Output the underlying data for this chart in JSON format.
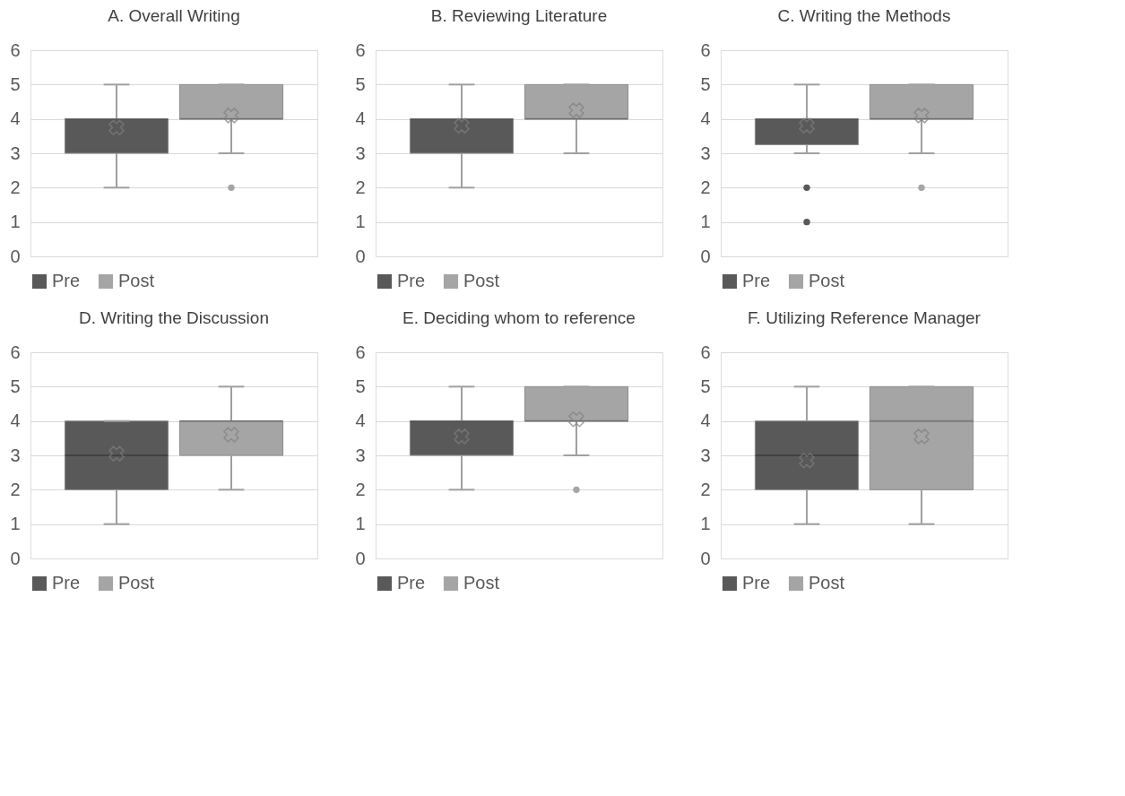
{
  "chart_data": [
    {
      "type": "box",
      "title": "A. Overall Writing",
      "categories": [
        null
      ],
      "ylim": [
        0,
        6
      ],
      "yticks": [
        0,
        1,
        2,
        3,
        4,
        5,
        6
      ],
      "grid": "y",
      "legend": "bottom",
      "marker": "cross",
      "tick_labels": "y",
      "series": [
        {
          "name": "Pre",
          "color": "#595959",
          "boxes": [
            {
              "low": 2,
              "q1": 3,
              "median": 4,
              "q3": 4,
              "high": 5,
              "mean": 3.75
            }
          ]
        },
        {
          "name": "Post",
          "color": "#a5a5a5",
          "boxes": [
            {
              "low": 3,
              "q1": 4,
              "median": 4,
              "q3": 5,
              "high": 5,
              "mean": 4.1,
              "outliers": [
                2
              ]
            }
          ]
        }
      ]
    },
    {
      "type": "box",
      "title": "B. Reviewing Literature",
      "categories": [
        null
      ],
      "ylim": [
        0,
        6
      ],
      "yticks": [
        0,
        1,
        2,
        3,
        4,
        5,
        6
      ],
      "grid": "y",
      "legend": "bottom",
      "marker": "cross",
      "tick_labels": "y",
      "series": [
        {
          "name": "Pre",
          "color": "#595959",
          "boxes": [
            {
              "low": 2,
              "q1": 3,
              "median": 4,
              "q3": 4,
              "high": 5,
              "mean": 3.8
            }
          ]
        },
        {
          "name": "Post",
          "color": "#a5a5a5",
          "boxes": [
            {
              "low": 3,
              "q1": 4,
              "median": 4,
              "q3": 5,
              "high": 5,
              "mean": 4.25
            }
          ]
        }
      ]
    },
    {
      "type": "box",
      "title": "C. Writing the Methods",
      "categories": [
        null
      ],
      "ylim": [
        0,
        6
      ],
      "yticks": [
        0,
        1,
        2,
        3,
        4,
        5,
        6
      ],
      "grid": "y",
      "legend": "bottom",
      "marker": "cross",
      "tick_labels": "y",
      "series": [
        {
          "name": "Pre",
          "color": "#595959",
          "boxes": [
            {
              "low": 3,
              "q1": 3.25,
              "median": 4,
              "q3": 4,
              "high": 5,
              "mean": 3.8,
              "outliers": [
                2,
                1
              ]
            }
          ]
        },
        {
          "name": "Post",
          "color": "#a5a5a5",
          "boxes": [
            {
              "low": 3,
              "q1": 4,
              "median": 4,
              "q3": 5,
              "high": 5,
              "mean": 4.1,
              "outliers": [
                2
              ]
            }
          ]
        }
      ]
    },
    {
      "type": "box",
      "title": "D. Writing the Discussion",
      "categories": [
        null
      ],
      "ylim": [
        0,
        6
      ],
      "yticks": [
        0,
        1,
        2,
        3,
        4,
        5,
        6
      ],
      "grid": "y",
      "legend": "bottom",
      "marker": "cross",
      "tick_labels": "y",
      "series": [
        {
          "name": "Pre",
          "color": "#595959",
          "boxes": [
            {
              "low": 1,
              "q1": 2,
              "median": 3,
              "q3": 4,
              "high": 4,
              "mean": 3.05
            }
          ]
        },
        {
          "name": "Post",
          "color": "#a5a5a5",
          "boxes": [
            {
              "low": 2,
              "q1": 3,
              "median": 4,
              "q3": 4,
              "high": 5,
              "mean": 3.6
            }
          ]
        }
      ]
    },
    {
      "type": "box",
      "title": "E. Deciding whom to reference",
      "categories": [
        null
      ],
      "ylim": [
        0,
        6
      ],
      "yticks": [
        0,
        1,
        2,
        3,
        4,
        5,
        6
      ],
      "grid": "y",
      "legend": "bottom",
      "marker": "cross",
      "tick_labels": "y",
      "series": [
        {
          "name": "Pre",
          "color": "#595959",
          "boxes": [
            {
              "low": 2,
              "q1": 3,
              "median": 4,
              "q3": 4,
              "high": 5,
              "mean": 3.55
            }
          ]
        },
        {
          "name": "Post",
          "color": "#a5a5a5",
          "boxes": [
            {
              "low": 3,
              "q1": 4,
              "median": 4,
              "q3": 5,
              "high": 5,
              "mean": 4.05,
              "outliers": [
                2
              ]
            }
          ]
        }
      ]
    },
    {
      "type": "box",
      "title": "F. Utilizing Reference Manager",
      "categories": [
        null
      ],
      "ylim": [
        0,
        6
      ],
      "yticks": [
        0,
        1,
        2,
        3,
        4,
        5,
        6
      ],
      "grid": "y",
      "legend": "bottom",
      "marker": "cross",
      "tick_labels": "y",
      "series": [
        {
          "name": "Pre",
          "color": "#595959",
          "boxes": [
            {
              "low": 1,
              "q1": 2,
              "median": 3,
              "q3": 4,
              "high": 5,
              "mean": 2.85
            }
          ]
        },
        {
          "name": "Post",
          "color": "#a5a5a5",
          "boxes": [
            {
              "low": 1,
              "q1": 2,
              "median": 4,
              "q3": 5,
              "high": 5,
              "mean": 3.55
            }
          ]
        }
      ]
    }
  ]
}
